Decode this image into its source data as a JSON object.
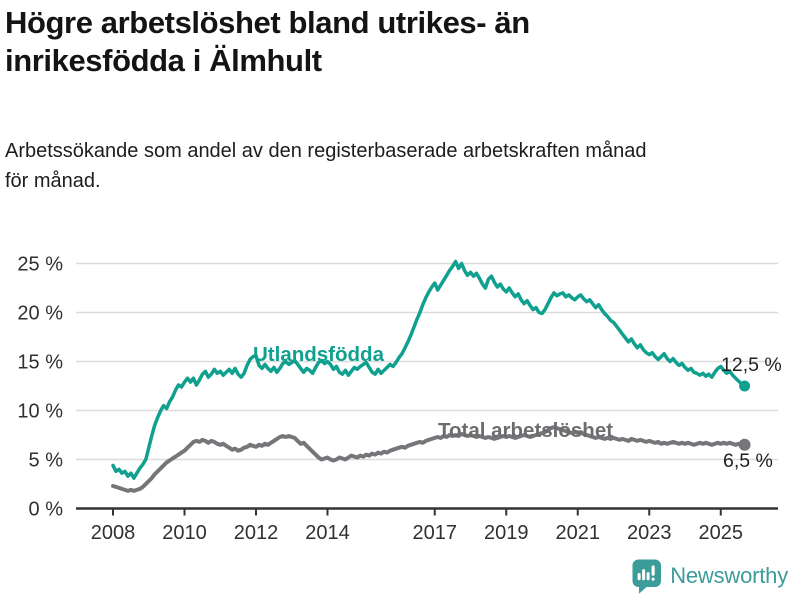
{
  "header": {
    "title_line1": "Högre arbetslöshet bland utrikes- än",
    "title_line2": "inrikesfödda i Älmhult",
    "subtitle_line1": "Arbetssökande som andel av den registerbaserade arbetskraften månad",
    "subtitle_line2": "för månad."
  },
  "footer": {
    "brand": "Newsworthy",
    "brand_color": "#3C9C9A"
  },
  "colors": {
    "foreign_born_line": "#10A08F",
    "total_line": "#76767A",
    "total_label": "#6D6D70",
    "axis_text": "#303030",
    "annotation_text": "#1F1F1F",
    "gridline": "#DBDBDB",
    "axis_line": "#333333"
  },
  "chart_data": {
    "type": "line",
    "unit": "percent",
    "x_start": "2008-01",
    "x_end": "2025-09",
    "x_frequency": "monthly",
    "x_ticks": [
      2008,
      2010,
      2012,
      2014,
      2017,
      2019,
      2021,
      2023,
      2025
    ],
    "y_ticks": [
      0,
      5,
      10,
      15,
      20,
      25
    ],
    "y_tick_suffix": " %",
    "ylim": [
      0,
      26.5
    ],
    "grid": "horizontal",
    "legend_position": "inline-labels",
    "series": [
      {
        "name": "Utlandsfödda",
        "color": "#10A08F",
        "end_label": "12,5 %",
        "end_value": 12.5,
        "values": [
          4.4,
          3.8,
          4.0,
          3.6,
          3.8,
          3.3,
          3.6,
          3.1,
          3.6,
          4.1,
          4.5,
          5.0,
          6.2,
          7.4,
          8.5,
          9.3,
          10.0,
          10.5,
          10.2,
          10.9,
          11.4,
          12.1,
          12.6,
          12.4,
          12.9,
          13.3,
          12.9,
          13.3,
          12.6,
          13.1,
          13.7,
          14.0,
          13.4,
          13.7,
          14.2,
          13.8,
          14.0,
          13.6,
          13.9,
          14.2,
          13.8,
          14.3,
          13.7,
          13.4,
          13.8,
          14.6,
          15.2,
          15.5,
          15.6,
          14.6,
          14.3,
          14.7,
          14.3,
          14.0,
          14.4,
          13.9,
          14.3,
          14.8,
          15.0,
          14.7,
          14.9,
          15.1,
          14.7,
          14.3,
          13.9,
          14.3,
          14.1,
          13.8,
          14.4,
          14.9,
          15.1,
          14.8,
          15.0,
          14.7,
          14.2,
          14.5,
          13.9,
          13.7,
          14.1,
          13.6,
          14.0,
          14.4,
          14.2,
          14.5,
          14.7,
          14.9,
          14.4,
          13.9,
          13.7,
          14.2,
          13.8,
          14.1,
          14.4,
          14.7,
          14.5,
          14.9,
          15.4,
          15.8,
          16.4,
          17.0,
          17.7,
          18.5,
          19.3,
          20.0,
          20.8,
          21.5,
          22.1,
          22.6,
          23.0,
          22.3,
          22.8,
          23.3,
          23.8,
          24.3,
          24.7,
          25.2,
          24.5,
          25.0,
          24.3,
          23.8,
          24.1,
          23.7,
          24.0,
          23.5,
          22.9,
          22.5,
          23.4,
          23.7,
          23.1,
          22.6,
          22.9,
          22.4,
          22.1,
          22.5,
          22.0,
          21.6,
          21.9,
          21.3,
          20.9,
          21.2,
          20.7,
          20.3,
          20.5,
          20.0,
          19.9,
          20.3,
          20.9,
          21.5,
          22.0,
          21.7,
          21.9,
          22.0,
          21.6,
          21.8,
          21.5,
          21.3,
          21.6,
          21.8,
          21.4,
          21.1,
          21.3,
          20.9,
          20.5,
          20.8,
          20.3,
          19.9,
          19.6,
          19.2,
          19.0,
          18.6,
          18.2,
          17.8,
          17.4,
          17.0,
          17.3,
          16.8,
          16.4,
          16.7,
          16.2,
          15.9,
          15.7,
          15.9,
          15.5,
          15.2,
          15.5,
          15.8,
          15.3,
          15.0,
          15.3,
          14.9,
          14.6,
          14.8,
          14.4,
          14.1,
          14.3,
          13.9,
          13.8,
          13.6,
          13.8,
          13.5,
          13.7,
          13.4,
          13.9,
          14.3,
          14.5,
          14.1,
          13.8,
          14.0,
          13.6,
          13.3,
          13.0,
          12.7,
          12.5
        ]
      },
      {
        "name": "Total arbetslöshet",
        "color": "#76767A",
        "end_label": "6,5 %",
        "end_value": 6.5,
        "values": [
          2.3,
          2.2,
          2.1,
          2.0,
          1.9,
          1.8,
          1.9,
          1.8,
          1.9,
          2.0,
          2.2,
          2.5,
          2.8,
          3.1,
          3.5,
          3.8,
          4.1,
          4.4,
          4.7,
          4.9,
          5.1,
          5.3,
          5.5,
          5.7,
          5.9,
          6.2,
          6.5,
          6.8,
          6.9,
          6.8,
          7.0,
          6.9,
          6.7,
          6.9,
          6.8,
          6.6,
          6.5,
          6.6,
          6.4,
          6.2,
          6.0,
          6.1,
          5.9,
          6.0,
          6.2,
          6.3,
          6.5,
          6.4,
          6.3,
          6.5,
          6.4,
          6.6,
          6.5,
          6.7,
          6.9,
          7.1,
          7.3,
          7.4,
          7.3,
          7.4,
          7.3,
          7.2,
          6.9,
          6.6,
          6.7,
          6.4,
          6.1,
          5.8,
          5.5,
          5.2,
          5.0,
          5.1,
          5.2,
          5.0,
          4.9,
          5.0,
          5.2,
          5.1,
          5.0,
          5.2,
          5.4,
          5.3,
          5.2,
          5.4,
          5.3,
          5.5,
          5.4,
          5.6,
          5.5,
          5.7,
          5.6,
          5.8,
          5.7,
          5.9,
          6.0,
          6.1,
          6.2,
          6.3,
          6.2,
          6.4,
          6.5,
          6.6,
          6.7,
          6.8,
          6.7,
          6.9,
          7.0,
          7.1,
          7.2,
          7.3,
          7.2,
          7.4,
          7.3,
          7.5,
          7.4,
          7.5,
          7.4,
          7.6,
          7.5,
          7.4,
          7.5,
          7.4,
          7.3,
          7.4,
          7.3,
          7.2,
          7.3,
          7.2,
          7.1,
          7.2,
          7.3,
          7.4,
          7.3,
          7.4,
          7.3,
          7.2,
          7.3,
          7.4,
          7.5,
          7.4,
          7.3,
          7.4,
          7.5,
          7.6,
          7.7,
          7.8,
          8.0,
          8.2,
          8.3,
          8.2,
          8.1,
          8.0,
          7.9,
          7.8,
          7.7,
          7.8,
          7.7,
          7.8,
          7.6,
          7.5,
          7.4,
          7.3,
          7.2,
          7.3,
          7.2,
          7.1,
          7.2,
          7.1,
          7.2,
          7.1,
          7.0,
          7.1,
          7.0,
          6.9,
          7.1,
          7.0,
          6.9,
          7.0,
          6.9,
          6.8,
          6.9,
          6.8,
          6.7,
          6.8,
          6.6,
          6.7,
          6.6,
          6.7,
          6.8,
          6.7,
          6.6,
          6.7,
          6.6,
          6.7,
          6.6,
          6.5,
          6.6,
          6.7,
          6.6,
          6.7,
          6.6,
          6.5,
          6.6,
          6.7,
          6.6,
          6.7,
          6.6,
          6.7,
          6.6,
          6.5,
          6.6,
          6.5,
          6.5
        ]
      }
    ]
  }
}
